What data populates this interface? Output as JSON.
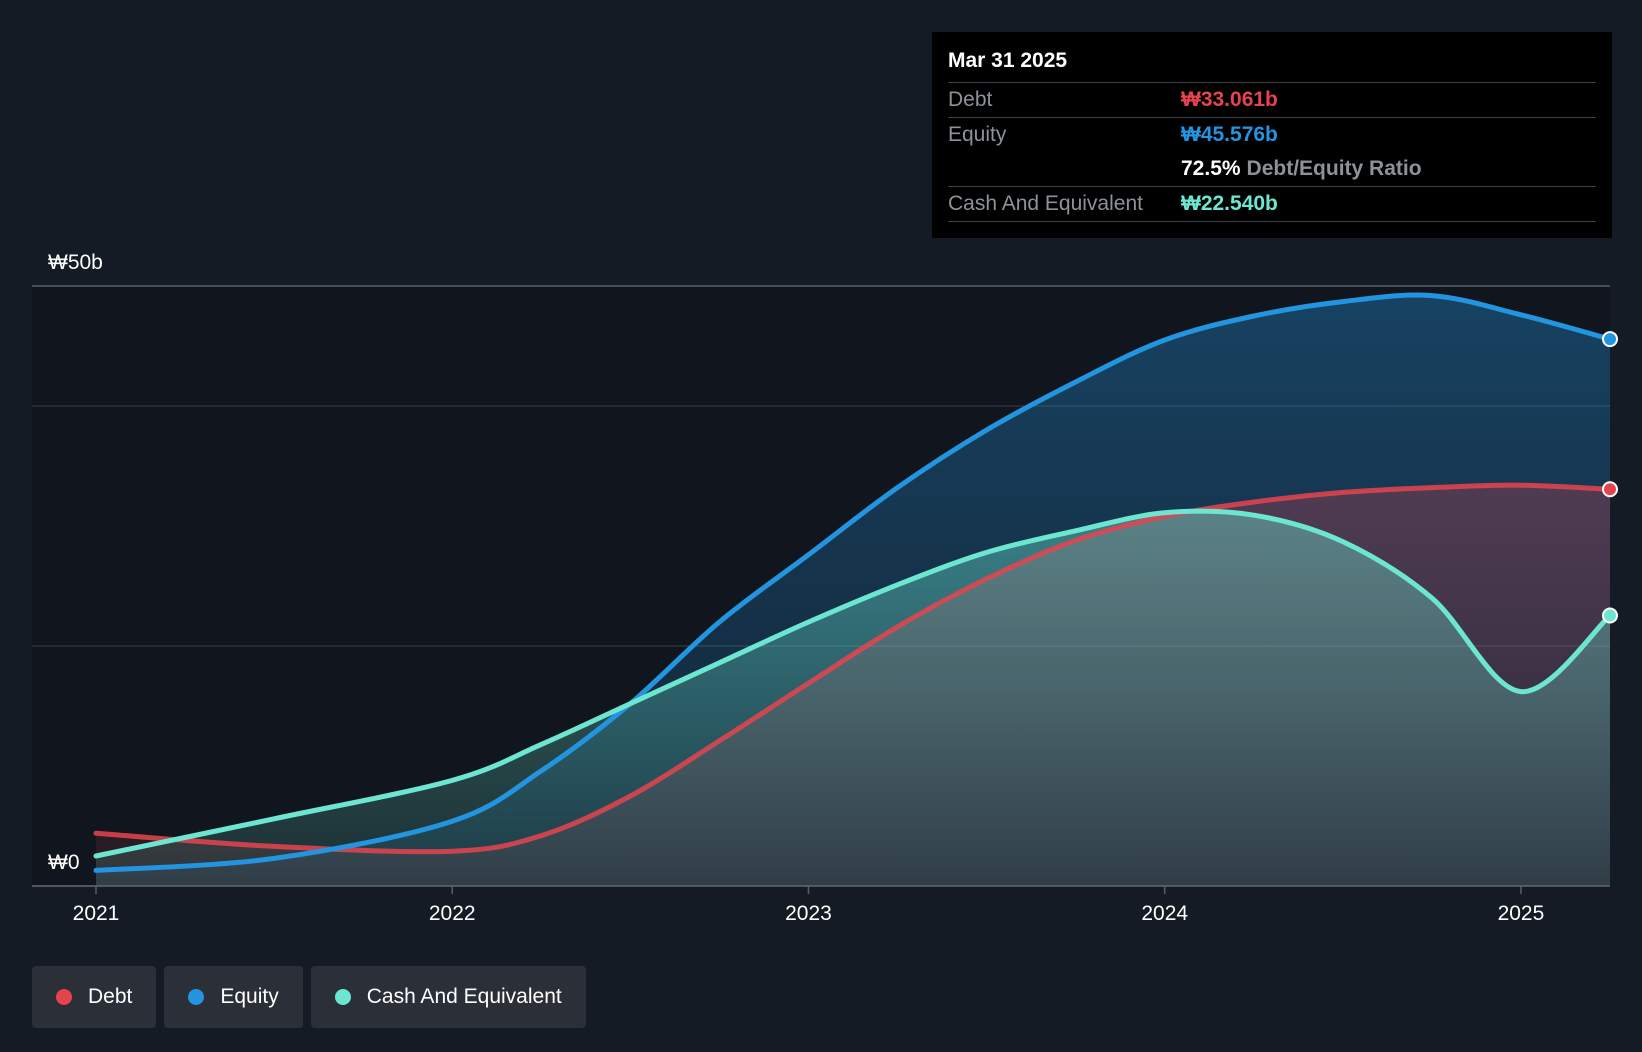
{
  "colors": {
    "background": "#151b24",
    "debt": "#e5444f",
    "equity": "#2394df",
    "cash": "#6ce6d1",
    "grid": "#3a3f47",
    "axis_text": "#ffffff"
  },
  "tooltip": {
    "date": "Mar 31 2025",
    "debt_label": "Debt",
    "debt_value": "₩33.061b",
    "equity_label": "Equity",
    "equity_value": "₩45.576b",
    "ratio_value": "72.5%",
    "ratio_label": "Debt/Equity Ratio",
    "cash_label": "Cash And Equivalent",
    "cash_value": "₩22.540b"
  },
  "legend": {
    "debt": "Debt",
    "equity": "Equity",
    "cash": "Cash And Equivalent"
  },
  "chart_data": {
    "type": "area",
    "title": "",
    "xlabel": "",
    "ylabel": "",
    "y_tick_labels": [
      "₩0",
      "₩50b"
    ],
    "ylim": [
      0,
      50
    ],
    "xlim": [
      2021.0,
      2025.25
    ],
    "x_ticks": [
      2021,
      2022,
      2023,
      2024,
      2025
    ],
    "x_tick_labels": [
      "2021",
      "2022",
      "2023",
      "2024",
      "2025"
    ],
    "gridlines": [
      0,
      20,
      40,
      50
    ],
    "legend_position": "bottom-left",
    "x": [
      2021.0,
      2021.5,
      2022.0,
      2022.25,
      2022.5,
      2022.75,
      2023.0,
      2023.25,
      2023.5,
      2023.75,
      2024.0,
      2024.25,
      2024.5,
      2024.75,
      2025.0,
      2025.25
    ],
    "series": [
      {
        "name": "Debt",
        "values": [
          4.4,
          3.3,
          2.9,
          4.2,
          7.5,
          12.1,
          16.9,
          21.6,
          25.6,
          28.8,
          30.8,
          32.0,
          32.8,
          33.2,
          33.4,
          33.061
        ]
      },
      {
        "name": "Equity",
        "values": [
          1.3,
          2.3,
          5.4,
          9.6,
          15.2,
          22.0,
          27.6,
          33.2,
          38.0,
          42.0,
          45.5,
          47.5,
          48.7,
          49.2,
          47.6,
          45.576
        ]
      },
      {
        "name": "Cash And Equivalent",
        "values": [
          2.5,
          5.6,
          8.8,
          11.8,
          15.2,
          18.6,
          22.0,
          25.1,
          27.8,
          29.6,
          31.1,
          30.9,
          28.7,
          24.0,
          16.2,
          22.54
        ]
      }
    ]
  }
}
